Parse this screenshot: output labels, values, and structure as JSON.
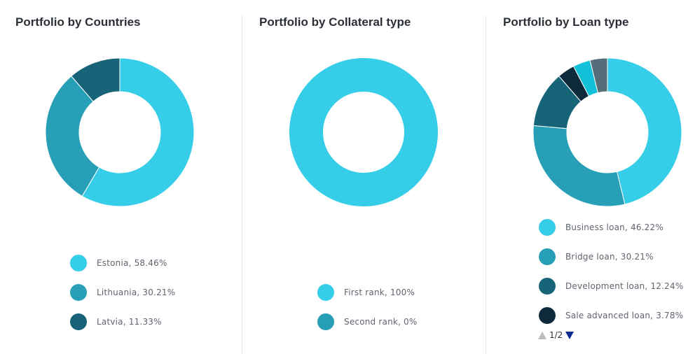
{
  "chart_data": [
    {
      "type": "pie",
      "title": "Portfolio by Countries",
      "donut": true,
      "slices": [
        {
          "label": "Estonia",
          "value": 58.46,
          "legend": "Estonia, 58.46%",
          "color": "#35cde8"
        },
        {
          "label": "Lithuania",
          "value": 30.21,
          "legend": "Lithuania, 30.21%",
          "color": "#279fb6"
        },
        {
          "label": "Latvia",
          "value": 11.33,
          "legend": "Latvia, 11.33%",
          "color": "#176478"
        }
      ]
    },
    {
      "type": "pie",
      "title": "Portfolio by Collateral type",
      "donut": true,
      "slices": [
        {
          "label": "First rank",
          "value": 100,
          "legend": "First rank, 100%",
          "color": "#35cde8"
        },
        {
          "label": "Second rank",
          "value": 0,
          "legend": "Second rank, 0%",
          "color": "#279fb6"
        }
      ]
    },
    {
      "type": "pie",
      "title": "Portfolio by Loan type",
      "donut": true,
      "slices": [
        {
          "label": "Business loan",
          "value": 46.22,
          "legend": "Business loan, 46.22%",
          "color": "#35cde8"
        },
        {
          "label": "Bridge loan",
          "value": 30.21,
          "legend": "Bridge loan, 30.21%",
          "color": "#279fb6"
        },
        {
          "label": "Development loan",
          "value": 12.24,
          "legend": "Development loan, 12.24%",
          "color": "#176478"
        },
        {
          "label": "Sale advanced loan",
          "value": 3.78,
          "legend": "Sale advanced loan, 3.78%",
          "color": "#0d2a3c"
        },
        {
          "label": "",
          "value": 3.78,
          "color": "#12c0d8"
        },
        {
          "label": "",
          "value": 3.77,
          "color": "#546e7a"
        }
      ],
      "legend_page": "1/2"
    }
  ]
}
